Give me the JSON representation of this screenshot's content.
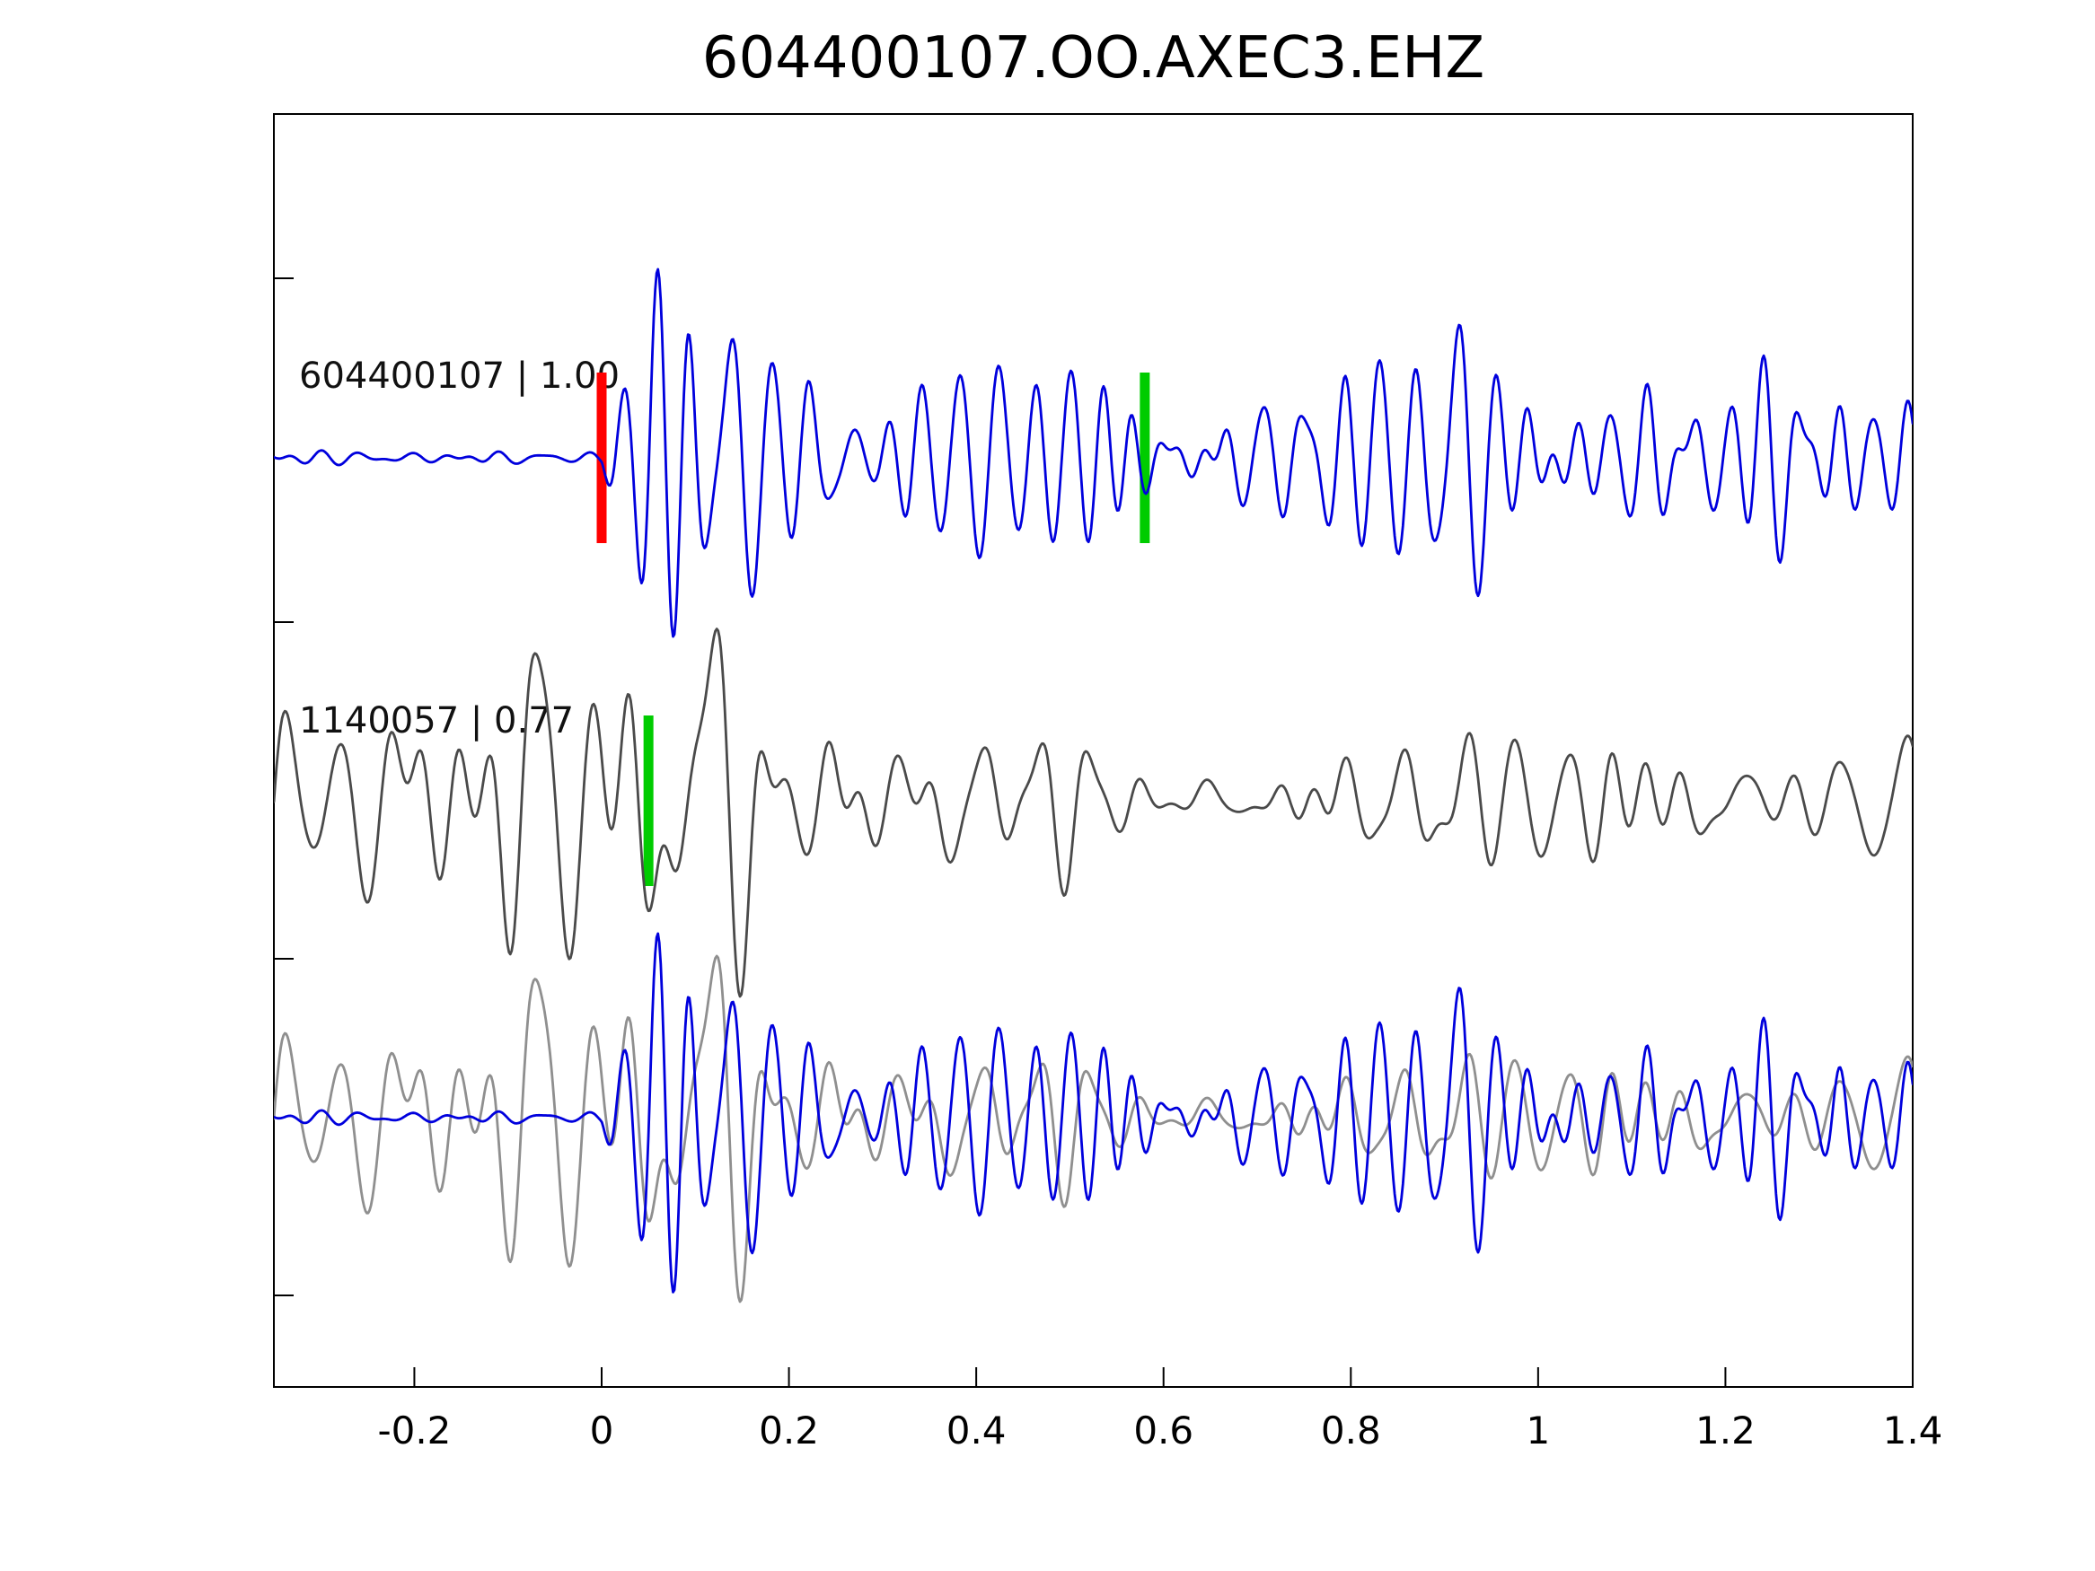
{
  "chart_data": {
    "type": "line",
    "chart_kind": "seismogram-waveform-comparison",
    "title": "604400107.OO.AXEC3.EHZ",
    "xlabel": "",
    "ylabel": "",
    "x_range": [
      -0.35,
      1.4
    ],
    "x_ticks": [
      -0.2,
      0,
      0.2,
      0.4,
      0.6,
      0.8,
      1,
      1.2,
      1.4
    ],
    "x_tick_labels": [
      "-0.2",
      "0",
      "0.2",
      "0.4",
      "0.6",
      "0.8",
      "1",
      "1.2",
      "1.4"
    ],
    "grid": false,
    "legend": "none",
    "colors": {
      "template": "#0000dd",
      "detection": "#4a4a4a",
      "detection_overlay": "#8f8f8f",
      "pick_red": "#ff0000",
      "pick_green": "#00cc00",
      "axis": "#000000",
      "text": "#000000",
      "background": "#ffffff"
    },
    "rows": [
      {
        "name": "template",
        "label": "604400107 | 1.00",
        "event_id": "604400107",
        "similarity": "1.00",
        "series": "template",
        "color_key": "template",
        "markers": [
          {
            "x": 0.0,
            "color_key": "pick_red",
            "name": "template-pick-marker"
          },
          {
            "x": 0.58,
            "color_key": "pick_green",
            "name": "template-window-marker"
          }
        ]
      },
      {
        "name": "detection",
        "label": "1140057 | 0.77",
        "event_id": "1140057",
        "similarity": "0.77",
        "series": "detection",
        "color_key": "detection",
        "markers": [
          {
            "x": 0.05,
            "color_key": "pick_green",
            "name": "detection-pick-marker"
          }
        ]
      },
      {
        "name": "overlay",
        "label": "",
        "layers": [
          {
            "series": "detection",
            "color_key": "detection_overlay"
          },
          {
            "series": "template",
            "color_key": "template"
          }
        ],
        "markers": []
      }
    ],
    "series_synthesis": {
      "note": "Seismogram waveforms approximated as band-limited noise shaped by amplitude envelopes (x in axis units, envelope 0-1 of trace max amplitude).",
      "template": {
        "seed": 11,
        "freq_range": [
          10,
          45
        ],
        "freq_center": 26,
        "freq_sigma": 9,
        "envelope": [
          [
            -0.35,
            0.035
          ],
          [
            -0.04,
            0.04
          ],
          [
            0.0,
            0.06
          ],
          [
            0.015,
            0.45
          ],
          [
            0.05,
            0.9
          ],
          [
            0.1,
            1.0
          ],
          [
            0.16,
            0.85
          ],
          [
            0.24,
            0.7
          ],
          [
            0.32,
            0.6
          ],
          [
            0.4,
            0.78
          ],
          [
            0.46,
            0.72
          ],
          [
            0.55,
            0.55
          ],
          [
            0.62,
            0.48
          ],
          [
            0.7,
            0.55
          ],
          [
            0.8,
            0.6
          ],
          [
            0.88,
            0.68
          ],
          [
            0.95,
            0.55
          ],
          [
            1.05,
            0.6
          ],
          [
            1.15,
            0.55
          ],
          [
            1.25,
            0.58
          ],
          [
            1.4,
            0.5
          ]
        ]
      },
      "detection": {
        "seed": 47,
        "freq_range": [
          6,
          38
        ],
        "freq_center": 18,
        "freq_sigma": 8,
        "envelope": [
          [
            -0.35,
            0.55
          ],
          [
            -0.28,
            0.48
          ],
          [
            -0.2,
            0.6
          ],
          [
            -0.12,
            0.55
          ],
          [
            -0.06,
            0.75
          ],
          [
            0.0,
            0.92
          ],
          [
            0.06,
            1.0
          ],
          [
            0.13,
            0.95
          ],
          [
            0.2,
            0.85
          ],
          [
            0.28,
            0.7
          ],
          [
            0.36,
            0.6
          ],
          [
            0.44,
            0.55
          ],
          [
            0.52,
            0.45
          ],
          [
            0.6,
            0.38
          ],
          [
            0.7,
            0.33
          ],
          [
            0.85,
            0.3
          ],
          [
            1.0,
            0.3
          ],
          [
            1.15,
            0.32
          ],
          [
            1.3,
            0.3
          ],
          [
            1.4,
            0.28
          ]
        ]
      }
    }
  }
}
